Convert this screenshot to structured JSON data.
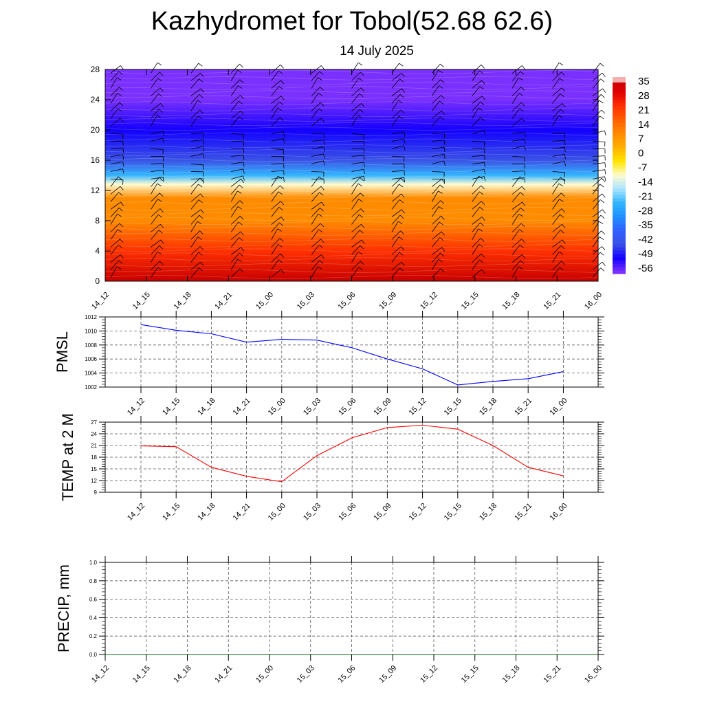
{
  "title": "Kazhydromet for Tobol(52.68 62.6)",
  "subtitle": "14 July 2025",
  "chart_data": [
    {
      "type": "heatmap",
      "description_kind": "time-height temperature cross-section with wind barbs",
      "x_tick_labels": [
        "14_12",
        "14_15",
        "14_18",
        "14_21",
        "15_00",
        "15_03",
        "15_06",
        "15_09",
        "15_12",
        "15_15",
        "15_18",
        "15_21",
        "16_00"
      ],
      "y_ticks": [
        0,
        4,
        8,
        12,
        16,
        20,
        24,
        28
      ],
      "ylim": [
        0,
        28
      ],
      "colorbar_labels": [
        "35",
        "28",
        "21",
        "14",
        "7",
        "0",
        "-7",
        "-14",
        "-21",
        "-28",
        "-35",
        "-42",
        "-49",
        "-56"
      ],
      "temperature_profile_by_level": [
        {
          "level": 0,
          "value": 30
        },
        {
          "level": 4,
          "value": 24
        },
        {
          "level": 8,
          "value": 18
        },
        {
          "level": 11,
          "value": 12
        },
        {
          "level": 12.8,
          "value": -10
        },
        {
          "level": 14,
          "value": -28
        },
        {
          "level": 16,
          "value": -42
        },
        {
          "level": 20,
          "value": -52
        },
        {
          "level": 24,
          "value": -58
        },
        {
          "level": 28,
          "value": -62
        }
      ],
      "colors": {
        "warm_max": "#c80000",
        "orange": "#ff8c00",
        "yellow": "#ffe600",
        "pale_yellow": "#fffbd0",
        "cyan": "#33b5ff",
        "blue": "#3a52e6",
        "deep_blue": "#1200ff",
        "violet": "#7a30ff"
      }
    },
    {
      "type": "line",
      "ylabel": "PMSL",
      "x_tick_labels": [
        "14_12",
        "14_15",
        "14_18",
        "14_21",
        "15_00",
        "15_03",
        "15_06",
        "15_09",
        "15_12",
        "15_15",
        "15_18",
        "15_21",
        "16_00"
      ],
      "y_ticks": [
        "1002",
        "1004",
        "1006",
        "1008",
        "1010",
        "1012"
      ],
      "ylim": [
        1002,
        1012
      ],
      "series": [
        {
          "values": [
            1010.9,
            1010.1,
            1009.6,
            1008.4,
            1008.8,
            1008.7,
            1007.6,
            1006.0,
            1004.6,
            1002.3,
            1002.8,
            1003.2,
            1004.2
          ],
          "color": "#0000ff"
        }
      ]
    },
    {
      "type": "line",
      "ylabel": "TEMP at 2 M",
      "x_tick_labels": [
        "14_12",
        "14_15",
        "14_18",
        "14_21",
        "15_00",
        "15_03",
        "15_06",
        "15_09",
        "15_12",
        "15_15",
        "15_18",
        "15_21",
        "16_00"
      ],
      "y_ticks": [
        "9",
        "12",
        "15",
        "18",
        "21",
        "24",
        "27"
      ],
      "ylim": [
        9,
        27
      ],
      "series": [
        {
          "values": [
            20.9,
            20.7,
            15.4,
            13.1,
            11.7,
            18.4,
            23.0,
            25.6,
            26.2,
            25.2,
            21.0,
            15.4,
            13.2
          ],
          "color": "#ff0000"
        }
      ]
    },
    {
      "type": "line",
      "ylabel": "PRECIP, mm",
      "x_tick_labels": [
        "14_12",
        "14_15",
        "14_18",
        "14_21",
        "15_00",
        "15_03",
        "15_06",
        "15_09",
        "15_12",
        "15_15",
        "15_18",
        "15_21",
        "16_00"
      ],
      "y_ticks": [
        "0.0",
        "0.2",
        "0.4",
        "0.6",
        "0.8",
        "1.0"
      ],
      "ylim": [
        0,
        1
      ],
      "series": [
        {
          "values": [
            0,
            0,
            0,
            0,
            0,
            0,
            0,
            0,
            0,
            0,
            0,
            0,
            0
          ],
          "color": "#006400"
        }
      ]
    }
  ]
}
